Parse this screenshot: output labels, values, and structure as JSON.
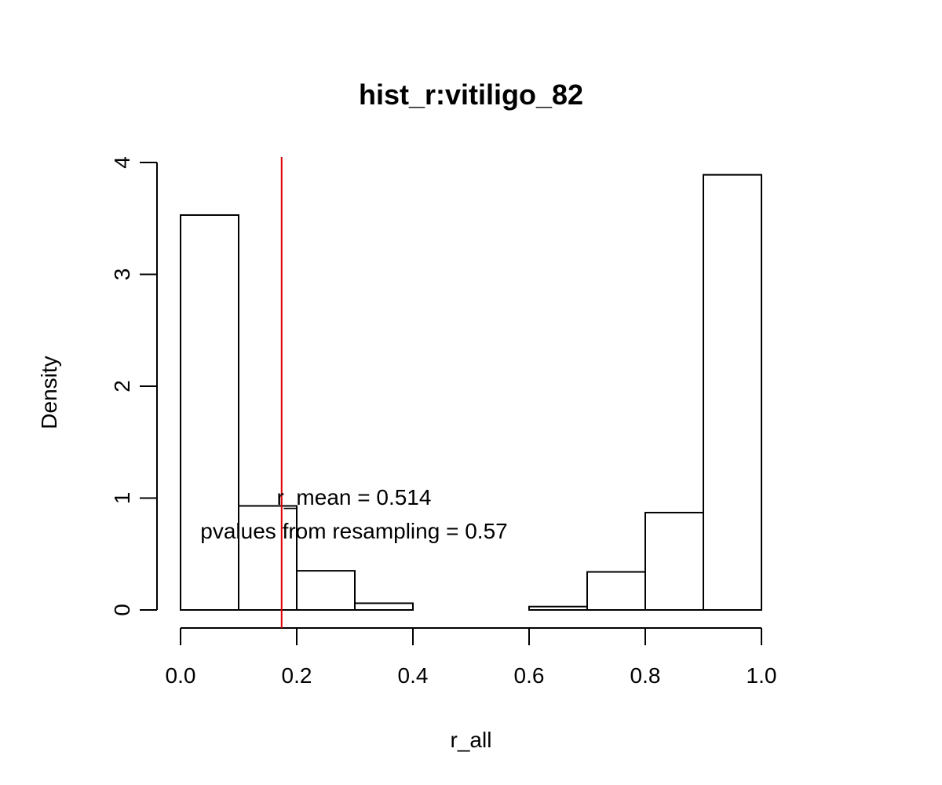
{
  "chart_data": {
    "type": "bar",
    "title": "hist_r:vitiligo_82",
    "xlabel": "r_all",
    "ylabel": "Density",
    "xlim": [
      0,
      1
    ],
    "ylim": [
      0,
      4
    ],
    "x_ticks": [
      "0.0",
      "0.2",
      "0.4",
      "0.6",
      "0.8",
      "1.0"
    ],
    "y_ticks": [
      "0",
      "1",
      "2",
      "3",
      "4"
    ],
    "bins": [
      {
        "from": 0.0,
        "to": 0.1,
        "density": 3.53
      },
      {
        "from": 0.1,
        "to": 0.2,
        "density": 0.93
      },
      {
        "from": 0.2,
        "to": 0.3,
        "density": 0.35
      },
      {
        "from": 0.3,
        "to": 0.4,
        "density": 0.06
      },
      {
        "from": 0.4,
        "to": 0.5,
        "density": 0.0
      },
      {
        "from": 0.5,
        "to": 0.6,
        "density": 0.0
      },
      {
        "from": 0.6,
        "to": 0.7,
        "density": 0.03
      },
      {
        "from": 0.7,
        "to": 0.8,
        "density": 0.34
      },
      {
        "from": 0.8,
        "to": 0.9,
        "density": 0.87
      },
      {
        "from": 0.9,
        "to": 1.0,
        "density": 3.89
      }
    ],
    "reference_line": {
      "x": 0.174,
      "color": "#dd0000"
    },
    "annotations": [
      {
        "text": "r_mean = 0.514"
      },
      {
        "text": "pvalues from resampling = 0.57"
      }
    ],
    "grid": false,
    "bar_fill": "#ffffff",
    "bar_stroke": "#000000"
  }
}
